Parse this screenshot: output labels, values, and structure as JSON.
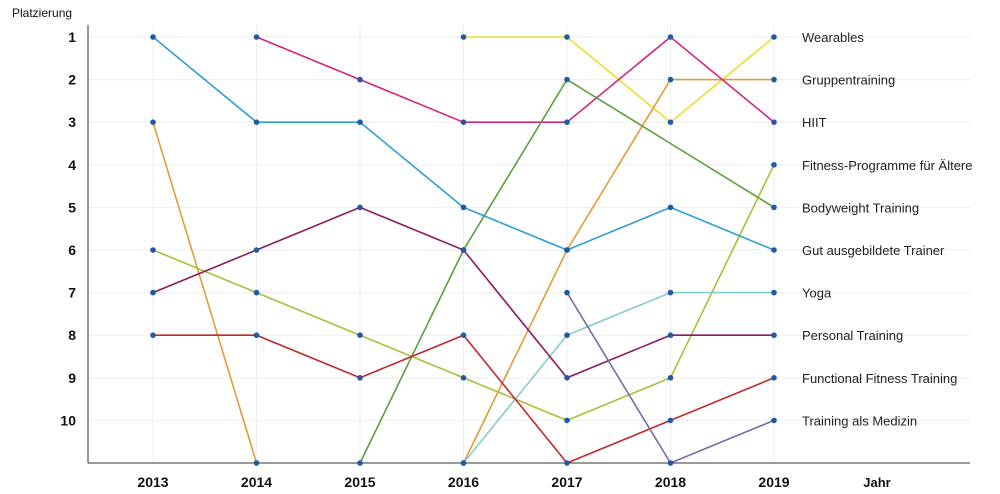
{
  "chart_data": {
    "type": "line",
    "ylabel": "Platzierung",
    "xlabel": "Jahr",
    "x": [
      "2013",
      "2014",
      "2015",
      "2016",
      "2017",
      "2018",
      "2019"
    ],
    "y_ticks": [
      "1",
      "2",
      "3",
      "4",
      "5",
      "6",
      "7",
      "8",
      "9",
      "10"
    ],
    "ylim": [
      1,
      11.1
    ],
    "y_inverted": true,
    "grid": true,
    "legend_placement": "right, labels at series end",
    "series": [
      {
        "name": "Wearables",
        "color": "#e8e02a",
        "values": [
          null,
          null,
          null,
          1,
          1,
          3,
          1
        ],
        "label_rank": 1
      },
      {
        "name": "Gruppentraining",
        "color": "#e39a3b",
        "values": [
          3,
          11,
          null,
          11,
          6,
          2,
          2
        ],
        "label_rank": 2
      },
      {
        "name": "HIIT",
        "color": "#d6247a",
        "values": [
          null,
          1,
          2,
          3,
          3,
          1,
          3
        ],
        "label_rank": 3
      },
      {
        "name": "Fitness-Programme für Ältere",
        "color": "#a8bf3a",
        "values": [
          6,
          7,
          8,
          9,
          10,
          9,
          4
        ],
        "label_rank": 4
      },
      {
        "name": "Bodyweight Training",
        "color": "#5a9e3a",
        "values": [
          null,
          null,
          11,
          6,
          2,
          3.5,
          5
        ],
        "label_rank": 5
      },
      {
        "name": "Gut ausgebildete Trainer",
        "color": "#2e9fd1",
        "values": [
          1,
          3,
          3,
          5,
          6,
          5,
          6
        ],
        "label_rank": 6
      },
      {
        "name": "Yoga",
        "color": "#86cccc",
        "values": [
          null,
          null,
          null,
          11,
          8,
          7,
          7
        ],
        "label_rank": 7
      },
      {
        "name": "Personal Training",
        "color": "#8c1a5c",
        "values": [
          7,
          6,
          5,
          6,
          9,
          8,
          8
        ],
        "label_rank": 8
      },
      {
        "name": "Functional Fitness Training",
        "color": "#c2282f",
        "values": [
          8,
          8,
          9,
          8,
          11,
          10,
          9
        ],
        "label_rank": 9
      },
      {
        "name": "Training als Medizin",
        "color": "#7a6aab",
        "values": [
          null,
          null,
          null,
          null,
          7,
          11,
          10
        ],
        "label_rank": 10
      }
    ],
    "point_color": "#1f5aa6"
  }
}
